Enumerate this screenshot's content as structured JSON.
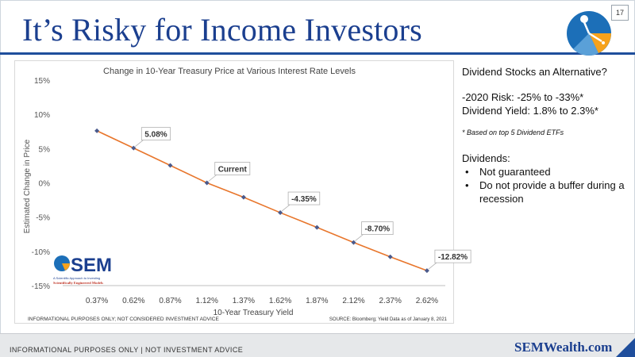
{
  "slide": {
    "title": "It’s Risky for Income Investors",
    "page_number": "17",
    "footer_left": "INFORMATIONAL PURPOSES ONLY | NOT INVESTMENT ADVICE",
    "footer_right": "SEMWealth.com"
  },
  "chart_panel": {
    "logo_text": "SEM",
    "logo_tag1": "A Scientific Approach to Investing",
    "logo_tag2": "Scientifically Engineered Models",
    "disclaimer": "INFORMATIONAL PURPOSES ONLY; NOT CONSIDERED INVESTMENT ADVICE",
    "source": "SOURCE: Bloomberg; Yield Data as of January 8, 2021"
  },
  "chart_data": {
    "type": "line",
    "title": "Change in 10-Year Treasury Price at Various Interest Rate Levels",
    "xlabel": "10-Year Treasury Yield",
    "ylabel": "Estimated Change in Price",
    "categories": [
      "0.37%",
      "0.62%",
      "0.87%",
      "1.12%",
      "1.37%",
      "1.62%",
      "1.87%",
      "2.12%",
      "2.37%",
      "2.62%"
    ],
    "series": [
      {
        "values": [
          7.6,
          5.08,
          2.55,
          0.0,
          -2.1,
          -4.35,
          -6.5,
          -8.7,
          -10.8,
          -12.82
        ]
      }
    ],
    "ylim": [
      -15,
      15
    ],
    "yticks": [
      15,
      10,
      5,
      0,
      -5,
      -10,
      -15
    ],
    "ytick_labels": [
      "15%",
      "10%",
      "5%",
      "0%",
      "-5%",
      "-10%",
      "-15%"
    ],
    "grid": false,
    "annotations": [
      {
        "index": 1,
        "text": "5.08%"
      },
      {
        "index": 3,
        "text": "Current"
      },
      {
        "index": 5,
        "text": "-4.35%"
      },
      {
        "index": 7,
        "text": "-8.70%"
      },
      {
        "index": 9,
        "text": "-12.82%"
      }
    ],
    "line_color": "#e8762c",
    "marker_color": "#4a5a8c"
  },
  "sidebar": {
    "heading": "Dividend Stocks an Alternative?",
    "risk_line": "-2020 Risk: -25% to -33%*",
    "yield_line": "Dividend Yield: 1.8% to 2.3%*",
    "footnote": "* Based on top 5 Dividend ETFs",
    "dividends_heading": "Dividends:",
    "bullets": [
      "Not guaranteed",
      "Do not provide a buffer during a recession"
    ]
  },
  "colors": {
    "title": "#1b3f8f",
    "accent": "#1f4e9c",
    "logo_orange": "#f6a21b",
    "logo_blue": "#1c6fb8"
  }
}
